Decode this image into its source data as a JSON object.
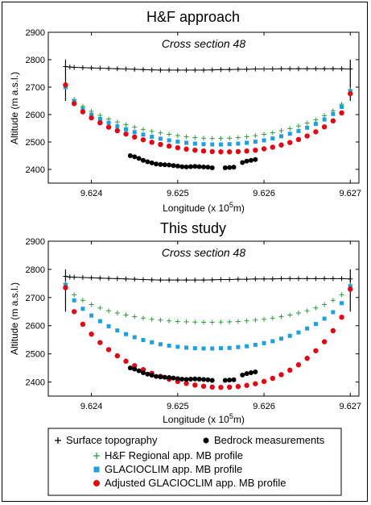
{
  "colors": {
    "surface": "#000000",
    "bedrock": "#000000",
    "hf": "#2e9e3e",
    "glacioclim": "#1e9fe0",
    "adjusted": "#e30613"
  },
  "legend": [
    {
      "label": "Surface topography",
      "marker": "plus",
      "color": "#000000"
    },
    {
      "label": "Bedrock measurements",
      "marker": "dot",
      "color": "#000000"
    },
    {
      "label": "H&F Regional app. MB profile",
      "marker": "plus",
      "color": "#2e9e3e"
    },
    {
      "label": "GLACIOCLIM app. MB profile",
      "marker": "square",
      "color": "#1e9fe0"
    },
    {
      "label": "Adjusted GLACIOCLIM app. MB profile",
      "marker": "circle",
      "color": "#e30613"
    }
  ],
  "chart_data": [
    {
      "type": "scatter",
      "title": "H&F approach",
      "subtitle": "Cross section 48",
      "xlabel": "Longitude (x 10^5m)",
      "ylabel": "Altitude (m a.s.l.)",
      "xlim": [
        9.6235,
        9.6271
      ],
      "ylim": [
        2350,
        2900
      ],
      "xticks": [
        "9.624",
        "9.625",
        "9.626",
        "9.627"
      ],
      "xtick_values": [
        9.624,
        9.625,
        9.626,
        9.627
      ],
      "yticks": [
        "2400",
        "2500",
        "2600",
        "2700",
        "2800",
        "2900"
      ],
      "ytick_values": [
        2400,
        2500,
        2600,
        2700,
        2800,
        2900
      ],
      "margin_lines": {
        "x": [
          9.6237,
          9.627
        ],
        "y": [
          2650,
          2800
        ]
      },
      "series": [
        {
          "name": "Surface topography",
          "x": [
            9.6237,
            9.62375,
            9.6238,
            9.6239,
            9.624,
            9.6241,
            9.6242,
            9.6243,
            9.6244,
            9.6245,
            9.6246,
            9.6247,
            9.6248,
            9.6249,
            9.625,
            9.6251,
            9.6252,
            9.6253,
            9.6254,
            9.6255,
            9.6256,
            9.6257,
            9.6258,
            9.6259,
            9.626,
            9.6261,
            9.6262,
            9.6263,
            9.6264,
            9.6265,
            9.6266,
            9.6267,
            9.6268,
            9.6269,
            9.627
          ],
          "y": [
            2775,
            2773,
            2772,
            2771,
            2770,
            2769,
            2768,
            2767,
            2766,
            2765,
            2764,
            2763,
            2762,
            2762,
            2762,
            2762,
            2762,
            2762,
            2763,
            2764,
            2764,
            2765,
            2765,
            2766,
            2766,
            2766,
            2767,
            2767,
            2767,
            2767,
            2767,
            2767,
            2767,
            2767,
            2766
          ]
        },
        {
          "name": "H&F Regional app. MB profile",
          "x": [
            9.6237,
            9.6238,
            9.6239,
            9.624,
            9.6241,
            9.6242,
            9.6243,
            9.6244,
            9.6245,
            9.6246,
            9.6247,
            9.6248,
            9.6249,
            9.625,
            9.6251,
            9.6252,
            9.6253,
            9.6254,
            9.6255,
            9.6256,
            9.6257,
            9.6258,
            9.6259,
            9.626,
            9.6261,
            9.6262,
            9.6263,
            9.6264,
            9.6265,
            9.6266,
            9.6267,
            9.6268,
            9.6269,
            9.627
          ],
          "y": [
            2700,
            2655,
            2630,
            2612,
            2597,
            2584,
            2573,
            2563,
            2554,
            2546,
            2539,
            2533,
            2528,
            2523,
            2519,
            2516,
            2514,
            2513,
            2513,
            2514,
            2516,
            2519,
            2523,
            2528,
            2534,
            2541,
            2549,
            2558,
            2569,
            2581,
            2596,
            2614,
            2638,
            2690
          ]
        },
        {
          "name": "GLACIOCLIM app. MB profile",
          "x": [
            9.6237,
            9.6238,
            9.6239,
            9.624,
            9.6241,
            9.6242,
            9.6243,
            9.6244,
            9.6245,
            9.6246,
            9.6247,
            9.6248,
            9.6249,
            9.625,
            9.6251,
            9.6252,
            9.6253,
            9.6254,
            9.6255,
            9.6256,
            9.6257,
            9.6258,
            9.6259,
            9.626,
            9.6261,
            9.6262,
            9.6263,
            9.6264,
            9.6265,
            9.6266,
            9.6267,
            9.6268,
            9.6269,
            9.627
          ],
          "y": [
            2700,
            2648,
            2620,
            2600,
            2584,
            2570,
            2557,
            2546,
            2536,
            2527,
            2519,
            2512,
            2506,
            2501,
            2497,
            2494,
            2492,
            2491,
            2491,
            2492,
            2494,
            2497,
            2501,
            2506,
            2513,
            2521,
            2530,
            2540,
            2552,
            2566,
            2582,
            2602,
            2628,
            2685
          ]
        },
        {
          "name": "Adjusted GLACIOCLIM app. MB profile",
          "x": [
            9.6237,
            9.6238,
            9.6239,
            9.624,
            9.6241,
            9.6242,
            9.6243,
            9.6244,
            9.6245,
            9.6246,
            9.6247,
            9.6248,
            9.6249,
            9.625,
            9.6251,
            9.6252,
            9.6253,
            9.6254,
            9.6255,
            9.6256,
            9.6257,
            9.6258,
            9.6259,
            9.626,
            9.6261,
            9.6262,
            9.6263,
            9.6264,
            9.6265,
            9.6266,
            9.6267,
            9.6268,
            9.6269,
            9.627
          ],
          "y": [
            2708,
            2640,
            2610,
            2588,
            2570,
            2554,
            2541,
            2529,
            2518,
            2508,
            2499,
            2491,
            2485,
            2479,
            2474,
            2470,
            2467,
            2465,
            2464,
            2464,
            2465,
            2467,
            2470,
            2475,
            2481,
            2489,
            2498,
            2509,
            2522,
            2537,
            2555,
            2577,
            2606,
            2676
          ]
        },
        {
          "name": "Bedrock measurements",
          "x": [
            9.62445,
            9.6245,
            9.62455,
            9.6246,
            9.62465,
            9.6247,
            9.62475,
            9.6248,
            9.62485,
            9.6249,
            9.62495,
            9.625,
            9.62505,
            9.6251,
            9.62515,
            9.6252,
            9.62525,
            9.6253,
            9.62535,
            9.6254,
            9.62555,
            9.6256,
            9.62565,
            9.62575,
            9.6258,
            9.62585,
            9.6259
          ],
          "y": [
            2450,
            2446,
            2440,
            2433,
            2428,
            2424,
            2420,
            2418,
            2417,
            2416,
            2414,
            2412,
            2410,
            2409,
            2410,
            2411,
            2410,
            2409,
            2408,
            2406,
            2406,
            2407,
            2408,
            2425,
            2430,
            2433,
            2436
          ]
        }
      ]
    },
    {
      "type": "scatter",
      "title": "This study",
      "subtitle": "Cross section 48",
      "xlabel": "Longitude (x 10^5m)",
      "ylabel": "Altitude (m a.s.l.)",
      "xlim": [
        9.6235,
        9.6271
      ],
      "ylim": [
        2350,
        2900
      ],
      "xticks": [
        "9.624",
        "9.625",
        "9.626",
        "9.627"
      ],
      "xtick_values": [
        9.624,
        9.625,
        9.626,
        9.627
      ],
      "yticks": [
        "2400",
        "2500",
        "2600",
        "2700",
        "2800",
        "2900"
      ],
      "ytick_values": [
        2400,
        2500,
        2600,
        2700,
        2800,
        2900
      ],
      "margin_lines": {
        "x": [
          9.6237,
          9.627
        ],
        "y": [
          2650,
          2800
        ]
      },
      "series": [
        {
          "name": "Surface topography",
          "x": [
            9.6237,
            9.62375,
            9.6238,
            9.6239,
            9.624,
            9.6241,
            9.6242,
            9.6243,
            9.6244,
            9.6245,
            9.6246,
            9.6247,
            9.6248,
            9.6249,
            9.625,
            9.6251,
            9.6252,
            9.6253,
            9.6254,
            9.6255,
            9.6256,
            9.6257,
            9.6258,
            9.6259,
            9.626,
            9.6261,
            9.6262,
            9.6263,
            9.6264,
            9.6265,
            9.6266,
            9.6267,
            9.6268,
            9.6269,
            9.627
          ],
          "y": [
            2775,
            2773,
            2772,
            2771,
            2770,
            2769,
            2768,
            2767,
            2766,
            2765,
            2764,
            2763,
            2762,
            2762,
            2762,
            2762,
            2762,
            2762,
            2763,
            2764,
            2764,
            2765,
            2765,
            2766,
            2766,
            2766,
            2767,
            2767,
            2767,
            2767,
            2767,
            2767,
            2767,
            2767,
            2766
          ]
        },
        {
          "name": "H&F Regional app. MB profile",
          "x": [
            9.6237,
            9.6238,
            9.6239,
            9.624,
            9.6241,
            9.6242,
            9.6243,
            9.6244,
            9.6245,
            9.6246,
            9.6247,
            9.6248,
            9.6249,
            9.625,
            9.6251,
            9.6252,
            9.6253,
            9.6254,
            9.6255,
            9.6256,
            9.6257,
            9.6258,
            9.6259,
            9.626,
            9.6261,
            9.6262,
            9.6263,
            9.6264,
            9.6265,
            9.6266,
            9.6267,
            9.6268,
            9.6269,
            9.627
          ],
          "y": [
            2750,
            2710,
            2690,
            2675,
            2663,
            2653,
            2645,
            2638,
            2632,
            2627,
            2623,
            2620,
            2617,
            2615,
            2614,
            2613,
            2612,
            2612,
            2613,
            2614,
            2615,
            2617,
            2620,
            2623,
            2627,
            2632,
            2638,
            2645,
            2653,
            2663,
            2675,
            2690,
            2710,
            2745
          ]
        },
        {
          "name": "GLACIOCLIM app. MB profile",
          "x": [
            9.6237,
            9.6238,
            9.6239,
            9.624,
            9.6241,
            9.6242,
            9.6243,
            9.6244,
            9.6245,
            9.6246,
            9.6247,
            9.6248,
            9.6249,
            9.625,
            9.6251,
            9.6252,
            9.6253,
            9.6254,
            9.6255,
            9.6256,
            9.6257,
            9.6258,
            9.6259,
            9.626,
            9.6261,
            9.6262,
            9.6263,
            9.6264,
            9.6265,
            9.6266,
            9.6267,
            9.6268,
            9.6269,
            9.627
          ],
          "y": [
            2745,
            2690,
            2660,
            2636,
            2616,
            2598,
            2583,
            2570,
            2559,
            2549,
            2541,
            2534,
            2529,
            2525,
            2522,
            2520,
            2519,
            2519,
            2520,
            2521,
            2524,
            2527,
            2532,
            2538,
            2545,
            2554,
            2564,
            2576,
            2590,
            2606,
            2625,
            2648,
            2680,
            2740
          ]
        },
        {
          "name": "Adjusted GLACIOCLIM app. MB profile",
          "x": [
            9.6237,
            9.6238,
            9.6239,
            9.624,
            9.6241,
            9.6242,
            9.6243,
            9.6244,
            9.6245,
            9.6246,
            9.6247,
            9.6248,
            9.6249,
            9.625,
            9.6251,
            9.6252,
            9.6253,
            9.6254,
            9.6255,
            9.6256,
            9.6257,
            9.6258,
            9.6259,
            9.626,
            9.6261,
            9.6262,
            9.6263,
            9.6264,
            9.6265,
            9.6266,
            9.6267,
            9.6268,
            9.6269,
            9.627
          ],
          "y": [
            2735,
            2650,
            2605,
            2570,
            2540,
            2515,
            2493,
            2474,
            2458,
            2444,
            2431,
            2420,
            2410,
            2402,
            2395,
            2389,
            2385,
            2382,
            2381,
            2382,
            2384,
            2388,
            2394,
            2402,
            2413,
            2426,
            2442,
            2461,
            2484,
            2511,
            2543,
            2582,
            2630,
            2730
          ]
        },
        {
          "name": "Bedrock measurements",
          "x": [
            9.62445,
            9.6245,
            9.62455,
            9.6246,
            9.62465,
            9.6247,
            9.62475,
            9.6248,
            9.62485,
            9.6249,
            9.62495,
            9.625,
            9.62505,
            9.6251,
            9.62515,
            9.6252,
            9.62525,
            9.6253,
            9.62535,
            9.6254,
            9.62555,
            9.6256,
            9.62565,
            9.62575,
            9.6258,
            9.62585,
            9.6259
          ],
          "y": [
            2450,
            2446,
            2440,
            2433,
            2428,
            2424,
            2420,
            2418,
            2417,
            2416,
            2414,
            2412,
            2410,
            2409,
            2410,
            2411,
            2410,
            2409,
            2408,
            2406,
            2406,
            2407,
            2408,
            2425,
            2430,
            2433,
            2436
          ]
        }
      ]
    }
  ]
}
